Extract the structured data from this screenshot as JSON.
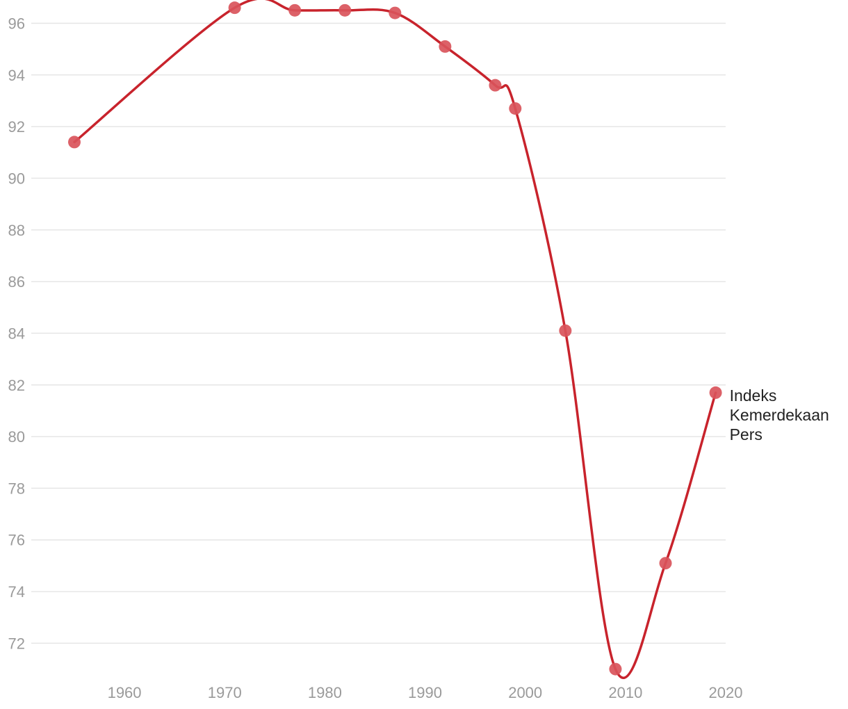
{
  "chart_data": {
    "type": "line",
    "title": "",
    "xlabel": "",
    "ylabel": "",
    "xlim": [
      1950.7,
      2020
    ],
    "ylim": [
      70.8,
      96.9
    ],
    "x_ticks": [
      1960,
      1970,
      1980,
      1990,
      2000,
      2010,
      2020
    ],
    "y_ticks": [
      72,
      74,
      76,
      78,
      80,
      82,
      84,
      86,
      88,
      90,
      92,
      94,
      96
    ],
    "grid": true,
    "legend": "none",
    "series": [
      {
        "name": "Indeks Kemerdekaan Pers",
        "label_lines": [
          "Indeks",
          "Kemerdekaan",
          "Pers"
        ],
        "color": "#c8232c",
        "point_color": "#d9545b",
        "x": [
          1955,
          1971,
          1977,
          1982,
          1987,
          1992,
          1997,
          1999,
          2004,
          2009,
          2014,
          2019
        ],
        "y": [
          91.4,
          96.6,
          96.5,
          96.5,
          96.4,
          95.1,
          93.6,
          92.7,
          84.1,
          71.0,
          75.1,
          81.7
        ]
      }
    ]
  }
}
